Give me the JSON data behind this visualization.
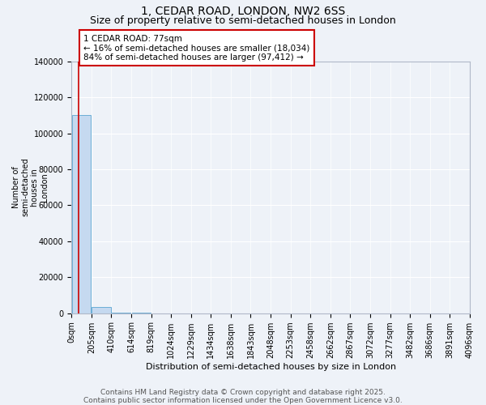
{
  "title": "1, CEDAR ROAD, LONDON, NW2 6SS",
  "subtitle": "Size of property relative to semi-detached houses in London",
  "xlabel": "Distribution of semi-detached houses by size in London",
  "ylabel": "Number of\nsemi-detached\nhouses in\nLondon",
  "footer_line1": "Contains HM Land Registry data © Crown copyright and database right 2025.",
  "footer_line2": "Contains public sector information licensed under the Open Government Licence v3.0.",
  "bin_edges": [
    0,
    205,
    410,
    614,
    819,
    1024,
    1229,
    1434,
    1638,
    1843,
    2048,
    2253,
    2458,
    2662,
    2867,
    3072,
    3277,
    3482,
    3686,
    3891,
    4096
  ],
  "bin_labels": [
    "0sqm",
    "205sqm",
    "410sqm",
    "614sqm",
    "819sqm",
    "1024sqm",
    "1229sqm",
    "1434sqm",
    "1638sqm",
    "1843sqm",
    "2048sqm",
    "2253sqm",
    "2458sqm",
    "2662sqm",
    "2867sqm",
    "3072sqm",
    "3277sqm",
    "3482sqm",
    "3686sqm",
    "3891sqm",
    "4096sqm"
  ],
  "bar_heights": [
    110000,
    3500,
    200,
    50,
    20,
    10,
    5,
    3,
    2,
    1,
    1,
    0,
    0,
    0,
    0,
    0,
    0,
    0,
    0,
    0
  ],
  "bar_color": "#c5d9f0",
  "bar_edge_color": "#6baed6",
  "ylim": [
    0,
    140000
  ],
  "yticks": [
    0,
    20000,
    40000,
    60000,
    80000,
    100000,
    120000,
    140000
  ],
  "property_size": 77,
  "property_line_color": "#cc0000",
  "annotation_line1": "1 CEDAR ROAD: 77sqm",
  "annotation_line2": "← 16% of semi-detached houses are smaller (18,034)",
  "annotation_line3": "84% of semi-detached houses are larger (97,412) →",
  "annotation_box_color": "#ffffff",
  "annotation_box_edge_color": "#cc0000",
  "background_color": "#eef2f8",
  "grid_color": "#ffffff",
  "title_fontsize": 10,
  "subtitle_fontsize": 9,
  "annotation_fontsize": 7.5,
  "footer_fontsize": 6.5,
  "ylabel_fontsize": 7,
  "xlabel_fontsize": 8,
  "tick_fontsize": 7
}
